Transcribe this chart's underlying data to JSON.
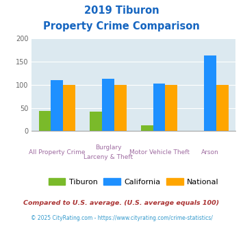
{
  "title_line1": "2019 Tiburon",
  "title_line2": "Property Crime Comparison",
  "cat_labels_line1": [
    "All Property Crime",
    "Burglary",
    "Motor Vehicle Theft",
    "Arson"
  ],
  "cat_labels_line2": [
    "",
    "Larceny & Theft",
    "",
    ""
  ],
  "tiburon_vals": [
    44,
    42,
    12,
    0
  ],
  "california_vals": [
    110,
    113,
    103,
    163
  ],
  "national_vals": [
    100,
    100,
    100,
    100
  ],
  "bar_width": 0.24,
  "ylim": [
    0,
    200
  ],
  "yticks": [
    0,
    50,
    100,
    150,
    200
  ],
  "color_tiburon": "#7aba2a",
  "color_california": "#1e90ff",
  "color_national": "#ffa500",
  "bg_color": "#dce9f0",
  "title_color": "#1565c0",
  "xlabel_color": "#9e6ba0",
  "legend_label_tiburon": "Tiburon",
  "legend_label_california": "California",
  "legend_label_national": "National",
  "footnote1": "Compared to U.S. average. (U.S. average equals 100)",
  "footnote2": "© 2025 CityRating.com - https://www.cityrating.com/crime-statistics/",
  "footnote1_color": "#aa3333",
  "footnote2_color": "#3399cc"
}
